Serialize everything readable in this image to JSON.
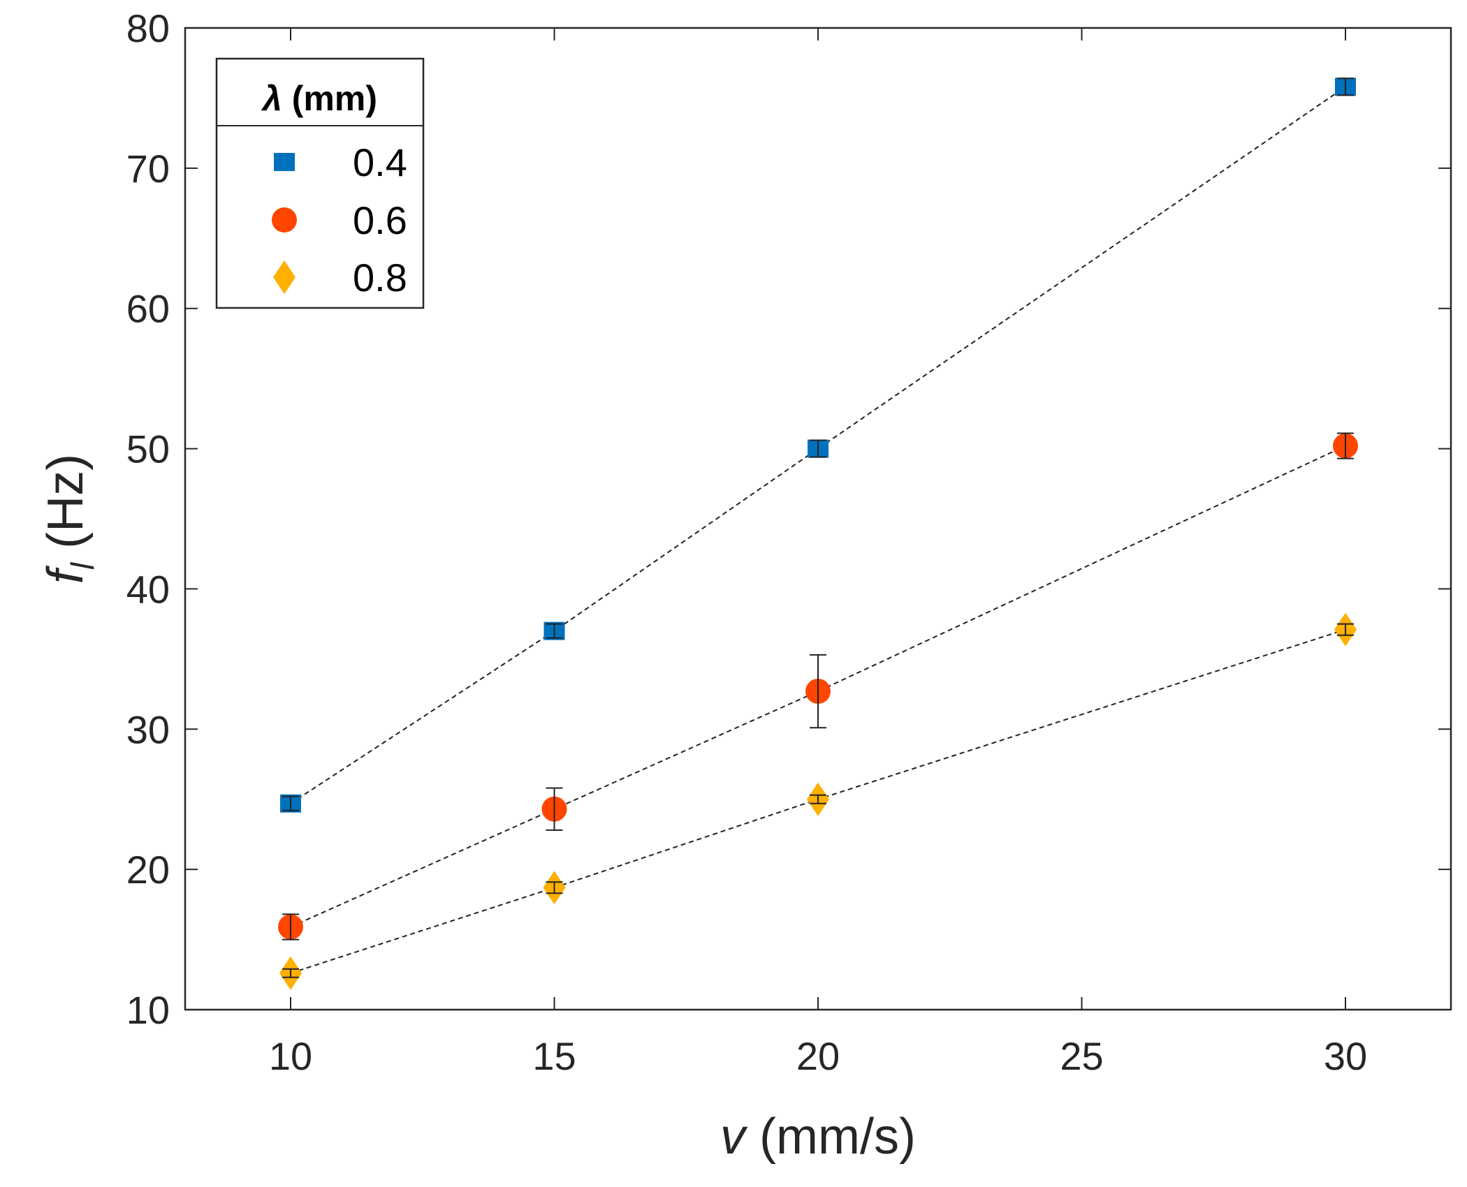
{
  "chart_data": {
    "type": "scatter",
    "xlabel": {
      "symbol": "v",
      "unit": "(mm/s)"
    },
    "ylabel": {
      "symbol": "f",
      "subscript": "l",
      "unit": "(Hz)"
    },
    "xlim": [
      8,
      32
    ],
    "ylim": [
      10,
      80
    ],
    "xticks": [
      10,
      15,
      20,
      25,
      30
    ],
    "yticks": [
      10,
      20,
      30,
      40,
      50,
      60,
      70,
      80
    ],
    "legend": {
      "title_symbol": "λ",
      "title_unit": "(mm)",
      "position": "top-left"
    },
    "series": [
      {
        "name": "0.4",
        "marker": "square",
        "color": "#0072BD",
        "x": [
          10,
          15,
          20,
          30
        ],
        "y": [
          24.7,
          37.0,
          50.0,
          75.8
        ],
        "err": [
          0.5,
          0.5,
          0.6,
          0.6
        ]
      },
      {
        "name": "0.6",
        "marker": "circle",
        "color": "#FF4500",
        "x": [
          10,
          15,
          20,
          30
        ],
        "y": [
          15.9,
          24.3,
          32.7,
          50.2
        ],
        "err": [
          0.9,
          1.5,
          2.6,
          0.9
        ]
      },
      {
        "name": "0.8",
        "marker": "diamond",
        "color": "#FFB000",
        "x": [
          10,
          15,
          20,
          30
        ],
        "y": [
          12.6,
          18.7,
          25.0,
          37.1
        ],
        "err": [
          0.3,
          0.4,
          0.3,
          0.4
        ]
      }
    ]
  }
}
